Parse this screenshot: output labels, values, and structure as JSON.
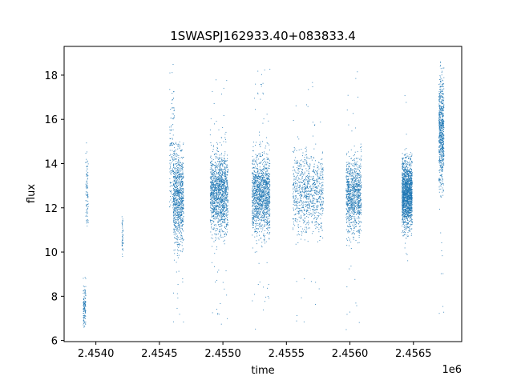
{
  "chart_data": {
    "type": "scatter",
    "title": "1SWASPJ162933.40+083833.4",
    "xlabel": "time",
    "ylabel": "flux",
    "x_offset_label": "1e6",
    "xlim": [
      2.45375,
      2.45688
    ],
    "ylim": [
      5.95,
      19.3
    ],
    "x_ticks": [
      2.454,
      2.4545,
      2.455,
      2.4555,
      2.456,
      2.4565
    ],
    "x_tick_labels": [
      "2.4540",
      "2.4545",
      "2.4550",
      "2.4555",
      "2.4560",
      "2.4565"
    ],
    "y_ticks": [
      6,
      8,
      10,
      12,
      14,
      16,
      18
    ],
    "y_tick_labels": [
      "6",
      "8",
      "10",
      "12",
      "14",
      "16",
      "18"
    ],
    "grid": false,
    "legend": "none",
    "marker_color": "#1f77b4",
    "series": [
      {
        "clusters": [
          {
            "x_center": 2.45391,
            "x_width": 2e-05,
            "y_min": 6.6,
            "y_max": 9.0,
            "y_mean": 7.5,
            "y_sd": 0.55,
            "n": 120
          },
          {
            "x_center": 2.45393,
            "x_width": 2e-05,
            "y_min": 11.0,
            "y_max": 15.2,
            "y_mean": 12.8,
            "y_sd": 0.8,
            "n": 90
          },
          {
            "x_center": 2.45421,
            "x_width": 1e-05,
            "y_min": 9.8,
            "y_max": 11.6,
            "y_mean": 10.7,
            "y_sd": 0.5,
            "n": 45
          },
          {
            "x_center": 2.4546,
            "x_width": 4e-05,
            "y_min": 12.0,
            "y_max": 18.7,
            "y_mean": 14.3,
            "y_sd": 1.4,
            "n": 140
          },
          {
            "x_center": 2.45465,
            "x_width": 8e-05,
            "y_min": 6.7,
            "y_max": 15.0,
            "y_mean": 12.5,
            "y_sd": 1.1,
            "n": 900
          },
          {
            "x_center": 2.45497,
            "x_width": 0.00014,
            "y_min": 6.6,
            "y_max": 18.0,
            "y_mean": 12.7,
            "y_sd": 0.85,
            "n": 1400
          },
          {
            "x_center": 2.4553,
            "x_width": 0.00014,
            "y_min": 6.5,
            "y_max": 18.3,
            "y_mean": 12.6,
            "y_sd": 0.85,
            "n": 1400
          },
          {
            "x_center": 2.45567,
            "x_width": 0.00024,
            "y_min": 6.6,
            "y_max": 17.7,
            "y_mean": 12.7,
            "y_sd": 0.9,
            "n": 900
          },
          {
            "x_center": 2.45603,
            "x_width": 0.00012,
            "y_min": 6.4,
            "y_max": 18.3,
            "y_mean": 12.6,
            "y_sd": 0.85,
            "n": 1000
          },
          {
            "x_center": 2.45645,
            "x_width": 8e-05,
            "y_min": 10.7,
            "y_max": 14.5,
            "y_mean": 12.6,
            "y_sd": 0.7,
            "n": 1600
          },
          {
            "x_center": 2.45644,
            "x_width": 3e-05,
            "y_min": 7.3,
            "y_max": 18.5,
            "y_mean": 12.7,
            "y_sd": 1.5,
            "n": 60
          },
          {
            "x_center": 2.45672,
            "x_width": 4e-05,
            "y_min": 6.9,
            "y_max": 18.6,
            "y_mean": 15.4,
            "y_sd": 1.2,
            "n": 700
          }
        ]
      }
    ]
  }
}
